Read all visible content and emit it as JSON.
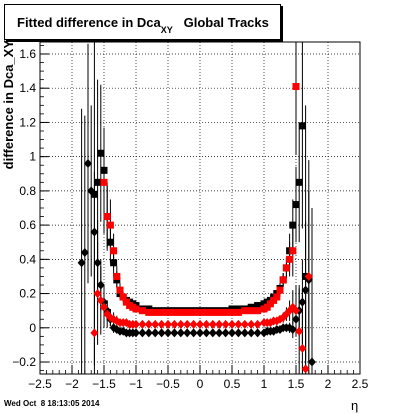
{
  "header": {
    "title_main": "Fitted difference in Dca",
    "title_sub": "XY",
    "title_tail": "   Global Tracks",
    "timestamp": "Wed Oct  8 18:13:05 2014"
  },
  "chart_data": {
    "type": "scatter",
    "title": "Fitted difference in Dca_XY   Global Tracks",
    "xlabel": "η",
    "ylabel": "difference in Dca_XY",
    "xlim": [
      -2.5,
      2.5
    ],
    "ylim": [
      -0.27,
      1.67
    ],
    "grid": true,
    "xticks": [
      -2.5,
      -2,
      -1.5,
      -1,
      -0.5,
      0,
      0.5,
      1,
      1.5,
      2,
      2.5
    ],
    "xtick_labels": [
      "−2.5",
      "−2",
      "−1.5",
      "−1",
      "−0.5",
      "0",
      "0.5",
      "1",
      "1.5",
      "2",
      "2.5"
    ],
    "yticks": [
      -0.2,
      0,
      0.2,
      0.4,
      0.6,
      0.8,
      1,
      1.2,
      1.4,
      1.6
    ],
    "ytick_labels": [
      "−0.2",
      "0",
      "0.2",
      "0.4",
      "0.6",
      "0.8",
      "1",
      "1.2",
      "1.4",
      "1.6"
    ],
    "series": [
      {
        "marker": "square",
        "color": "#000000",
        "x": [
          -1.65,
          -1.6,
          -1.55,
          -1.5,
          -1.45,
          -1.4,
          -1.35,
          -1.3,
          -1.25,
          -1.2,
          -1.15,
          -1.1,
          -1.05,
          -1.0,
          -0.9,
          -0.8,
          -0.7,
          -0.6,
          -0.5,
          -0.4,
          -0.3,
          -0.2,
          -0.1,
          0.0,
          0.1,
          0.2,
          0.3,
          0.4,
          0.5,
          0.6,
          0.7,
          0.8,
          0.9,
          1.0,
          1.05,
          1.1,
          1.15,
          1.2,
          1.25,
          1.3,
          1.35,
          1.4,
          1.45,
          1.5,
          1.55,
          1.6,
          1.65
        ],
        "y": [
          0.78,
          0.85,
          1.02,
          0.92,
          0.65,
          0.5,
          0.38,
          0.28,
          0.2,
          0.18,
          0.16,
          0.15,
          0.14,
          0.13,
          0.11,
          0.11,
          0.1,
          0.1,
          0.1,
          0.1,
          0.1,
          0.1,
          0.1,
          0.1,
          0.1,
          0.1,
          0.1,
          0.1,
          0.11,
          0.11,
          0.11,
          0.12,
          0.13,
          0.14,
          0.15,
          0.16,
          0.18,
          0.2,
          0.23,
          0.28,
          0.35,
          0.45,
          0.6,
          0.72,
          0.85,
          1.18,
          0.3
        ],
        "yerr": [
          1.0,
          0.6,
          0.4,
          0.25,
          0.18,
          0.12,
          0.08,
          0.05,
          0.03,
          0.02,
          0.02,
          0.02,
          0.02,
          0.02,
          0.02,
          0.02,
          0.02,
          0.02,
          0.02,
          0.02,
          0.02,
          0.02,
          0.02,
          0.02,
          0.02,
          0.02,
          0.02,
          0.02,
          0.02,
          0.02,
          0.02,
          0.02,
          0.02,
          0.02,
          0.02,
          0.02,
          0.02,
          0.02,
          0.03,
          0.04,
          0.06,
          0.1,
          0.15,
          0.22,
          0.35,
          0.6,
          1.0
        ]
      },
      {
        "marker": "square",
        "color": "#ff0000",
        "x": [
          -1.5,
          -1.45,
          -1.4,
          -1.35,
          -1.3,
          -1.25,
          -1.2,
          -1.15,
          -1.1,
          -1.05,
          -1.0,
          -0.9,
          -0.8,
          -0.7,
          -0.6,
          -0.5,
          -0.4,
          -0.3,
          -0.2,
          -0.1,
          0.0,
          0.1,
          0.2,
          0.3,
          0.4,
          0.5,
          0.6,
          0.7,
          0.8,
          0.9,
          1.0,
          1.05,
          1.1,
          1.15,
          1.2,
          1.25,
          1.3,
          1.35,
          1.4,
          1.45,
          1.5
        ],
        "y": [
          0.85,
          0.65,
          0.6,
          0.45,
          0.3,
          0.22,
          0.18,
          0.15,
          0.13,
          0.12,
          0.11,
          0.1,
          0.09,
          0.09,
          0.09,
          0.09,
          0.09,
          0.09,
          0.09,
          0.09,
          0.09,
          0.09,
          0.09,
          0.09,
          0.09,
          0.09,
          0.09,
          0.1,
          0.1,
          0.1,
          0.11,
          0.12,
          0.14,
          0.16,
          0.18,
          0.22,
          0.28,
          0.35,
          0.4,
          0.45,
          1.41
        ],
        "yerr": [
          0.3,
          0.2,
          0.15,
          0.1,
          0.06,
          0.04,
          0.03,
          0.02,
          0.02,
          0.02,
          0.02,
          0.02,
          0.02,
          0.02,
          0.02,
          0.02,
          0.02,
          0.02,
          0.02,
          0.02,
          0.02,
          0.02,
          0.02,
          0.02,
          0.02,
          0.02,
          0.02,
          0.02,
          0.02,
          0.02,
          0.02,
          0.02,
          0.02,
          0.02,
          0.02,
          0.03,
          0.04,
          0.06,
          0.1,
          0.15,
          0.4
        ]
      },
      {
        "marker": "diamond",
        "color": "#000000",
        "x": [
          -1.85,
          -1.8,
          -1.75,
          -1.7,
          -1.65,
          -1.6,
          -1.55,
          -1.5,
          -1.45,
          -1.4,
          -1.35,
          -1.3,
          -1.25,
          -1.2,
          -1.15,
          -1.1,
          -1.05,
          -1.0,
          -0.9,
          -0.8,
          -0.7,
          -0.6,
          -0.5,
          -0.4,
          -0.3,
          -0.2,
          -0.1,
          0.0,
          0.1,
          0.2,
          0.3,
          0.4,
          0.5,
          0.6,
          0.7,
          0.8,
          0.9,
          1.0,
          1.05,
          1.1,
          1.15,
          1.2,
          1.25,
          1.3,
          1.35,
          1.4,
          1.45,
          1.5,
          1.55,
          1.6,
          1.65,
          1.7,
          1.75
        ],
        "y": [
          0.38,
          0.44,
          0.96,
          0.8,
          0.56,
          0.38,
          0.25,
          0.15,
          0.1,
          0.05,
          0.0,
          -0.01,
          -0.02,
          -0.02,
          -0.03,
          -0.03,
          -0.03,
          -0.03,
          -0.03,
          -0.03,
          -0.03,
          -0.03,
          -0.03,
          -0.03,
          -0.03,
          -0.03,
          -0.03,
          -0.03,
          -0.03,
          -0.03,
          -0.03,
          -0.03,
          -0.03,
          -0.03,
          -0.03,
          -0.03,
          -0.03,
          -0.03,
          -0.02,
          -0.02,
          -0.02,
          -0.01,
          -0.01,
          0.0,
          0.0,
          0.0,
          -0.01,
          0.05,
          0.1,
          0.15,
          0.22,
          0.28,
          -0.2
        ],
        "yerr": [
          0.9,
          0.8,
          0.7,
          0.5,
          0.35,
          0.25,
          0.15,
          0.1,
          0.06,
          0.04,
          0.03,
          0.02,
          0.02,
          0.02,
          0.02,
          0.02,
          0.02,
          0.02,
          0.02,
          0.02,
          0.02,
          0.02,
          0.02,
          0.02,
          0.02,
          0.02,
          0.02,
          0.02,
          0.02,
          0.02,
          0.02,
          0.02,
          0.02,
          0.02,
          0.02,
          0.02,
          0.02,
          0.02,
          0.02,
          0.02,
          0.02,
          0.02,
          0.02,
          0.02,
          0.02,
          0.03,
          0.05,
          0.08,
          0.15,
          0.25,
          0.4,
          0.7,
          0.9
        ]
      },
      {
        "marker": "diamond",
        "color": "#ff0000",
        "x": [
          -1.65,
          -1.6,
          -1.55,
          -1.5,
          -1.45,
          -1.4,
          -1.35,
          -1.3,
          -1.25,
          -1.2,
          -1.15,
          -1.1,
          -1.05,
          -1.0,
          -0.9,
          -0.8,
          -0.7,
          -0.6,
          -0.5,
          -0.4,
          -0.3,
          -0.2,
          -0.1,
          0.0,
          0.1,
          0.2,
          0.3,
          0.4,
          0.5,
          0.6,
          0.7,
          0.8,
          0.9,
          1.0,
          1.05,
          1.1,
          1.15,
          1.2,
          1.25,
          1.3,
          1.35,
          1.4,
          1.45,
          1.5,
          1.55,
          1.6,
          1.65,
          1.7
        ],
        "y": [
          -0.03,
          0.2,
          0.16,
          0.12,
          0.08,
          0.06,
          0.05,
          0.04,
          0.03,
          0.03,
          0.03,
          0.02,
          0.02,
          0.02,
          0.02,
          0.02,
          0.02,
          0.02,
          0.02,
          0.02,
          0.02,
          0.02,
          0.02,
          0.02,
          0.02,
          0.02,
          0.02,
          0.02,
          0.02,
          0.02,
          0.02,
          0.02,
          0.02,
          0.03,
          0.03,
          0.03,
          0.04,
          0.04,
          0.05,
          0.06,
          0.08,
          0.1,
          0.12,
          0.1,
          -0.02,
          -0.12,
          -0.24,
          0.3
        ],
        "yerr": [
          0.4,
          0.3,
          0.2,
          0.12,
          0.08,
          0.05,
          0.04,
          0.03,
          0.02,
          0.02,
          0.02,
          0.02,
          0.02,
          0.02,
          0.02,
          0.02,
          0.02,
          0.02,
          0.02,
          0.02,
          0.02,
          0.02,
          0.02,
          0.02,
          0.02,
          0.02,
          0.02,
          0.02,
          0.02,
          0.02,
          0.02,
          0.02,
          0.02,
          0.02,
          0.02,
          0.02,
          0.02,
          0.02,
          0.02,
          0.03,
          0.04,
          0.06,
          0.1,
          0.15,
          0.25,
          0.35,
          0.4,
          0.5
        ]
      }
    ]
  }
}
